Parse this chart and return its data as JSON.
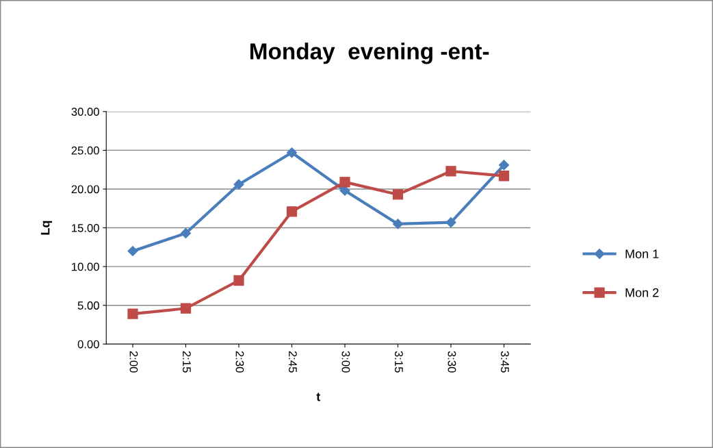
{
  "chart_data": {
    "type": "line",
    "title": "Monday  evening -ent-",
    "xlabel": "t",
    "ylabel": "Lq",
    "categories": [
      "2:00",
      "2:15",
      "2:30",
      "2:45",
      "3:00",
      "3:15",
      "3:30",
      "3:45"
    ],
    "series": [
      {
        "name": "Mon 1",
        "color": "#4a7ebb",
        "marker": "diamond",
        "values": [
          12.0,
          14.3,
          20.6,
          24.7,
          19.8,
          15.5,
          15.7,
          23.1
        ]
      },
      {
        "name": "Mon 2",
        "color": "#be4b48",
        "marker": "square",
        "values": [
          3.9,
          4.6,
          8.2,
          17.1,
          20.9,
          19.3,
          22.3,
          21.7
        ]
      }
    ],
    "ylim": [
      0,
      30
    ],
    "yticks": [
      {
        "value": 0,
        "label": "0.00"
      },
      {
        "value": 5,
        "label": "5.00"
      },
      {
        "value": 10,
        "label": "10.00"
      },
      {
        "value": 15,
        "label": "15.00"
      },
      {
        "value": 20,
        "label": "20.00"
      },
      {
        "value": 25,
        "label": "25.00"
      },
      {
        "value": 30,
        "label": "30.00"
      }
    ],
    "grid": "y",
    "legend": "right",
    "line_style": "solid"
  }
}
